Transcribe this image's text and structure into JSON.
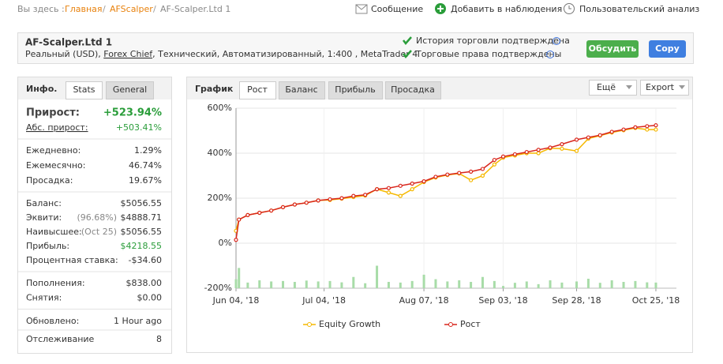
{
  "breadcrumb": {
    "label": "Вы здесь :",
    "items": [
      "Главная",
      "AFScalper",
      "AF-Scalper.Ltd 1"
    ]
  },
  "actions": [
    "Сообщение",
    "Добавить в наблюдения",
    "Пользовательский анализ"
  ],
  "account": {
    "name": "AF-Scalper.Ltd 1",
    "type": "Реальный (USD),",
    "broker": "Forex Chief",
    "details": ", Технический, Автоматизированный, 1:400 , MetaTrader 4",
    "checks": [
      "История торговли подтверждена",
      "Торговые права подтверждены"
    ],
    "buttons": [
      "Обсудить",
      "Copy"
    ]
  },
  "info": {
    "tabs": [
      "Инфо.",
      "Stats",
      "General"
    ],
    "headline": {
      "label": "Прирост:",
      "value": "+523.94%"
    },
    "groups": [
      [
        {
          "label": "Абс. прирост:",
          "value": "+503.41%",
          "color": "#2a9d3a"
        }
      ],
      [
        {
          "label": "Ежедневно:",
          "value": "1.29%"
        },
        {
          "label": "Ежемесячно:",
          "value": "46.74%"
        },
        {
          "label": "Просадка:",
          "value": "19.67%"
        }
      ],
      [
        {
          "label": "Баланс:",
          "value": "$5056.55"
        },
        {
          "label": "Эквити:",
          "note": "(96.68%)",
          "value": "$4888.71"
        },
        {
          "label": "Наивысшее:",
          "note": "(Oct 25)",
          "value": "$5056.55"
        },
        {
          "label": "Прибыль:",
          "value": "$4218.55",
          "color": "#2a9d3a"
        },
        {
          "label": "Процентная ставка:",
          "value": "-$34.60"
        }
      ],
      [
        {
          "label": "Пополнения:",
          "value": "$838.00"
        },
        {
          "label": "Снятия:",
          "value": "$0.00"
        }
      ],
      [
        {
          "label": "Обновлено:",
          "value": "1 Hour ago"
        },
        {
          "label": "Отслеживание",
          "value": "8"
        }
      ]
    ]
  },
  "chart_panel": {
    "title": "График",
    "tabs": [
      "Рост",
      "Баланс",
      "Прибыль",
      "Просадка"
    ],
    "buttons": [
      "Ещё",
      "Export"
    ]
  },
  "chart_data": {
    "type": "line",
    "x": [
      "2018-06-04",
      "2018-06-05",
      "2018-06-08",
      "2018-06-12",
      "2018-06-16",
      "2018-06-20",
      "2018-06-24",
      "2018-06-28",
      "2018-07-02",
      "2018-07-06",
      "2018-07-10",
      "2018-07-14",
      "2018-07-18",
      "2018-07-22",
      "2018-07-26",
      "2018-07-30",
      "2018-08-03",
      "2018-08-07",
      "2018-08-11",
      "2018-08-15",
      "2018-08-19",
      "2018-08-23",
      "2018-08-27",
      "2018-08-31",
      "2018-09-03",
      "2018-09-07",
      "2018-09-11",
      "2018-09-15",
      "2018-09-19",
      "2018-09-23",
      "2018-09-28",
      "2018-10-02",
      "2018-10-06",
      "2018-10-10",
      "2018-10-14",
      "2018-10-18",
      "2018-10-22",
      "2018-10-25"
    ],
    "series": [
      {
        "name": "Equity Growth",
        "color": "#f5b800",
        "values": [
          55,
          105,
          125,
          135,
          145,
          160,
          172,
          180,
          190,
          192,
          198,
          205,
          212,
          240,
          225,
          210,
          240,
          272,
          292,
          303,
          310,
          280,
          300,
          350,
          380,
          390,
          400,
          400,
          422,
          420,
          410,
          465,
          478,
          492,
          502,
          512,
          505,
          505
        ]
      },
      {
        "name": "Рост",
        "color": "#d9261c",
        "values": [
          15,
          105,
          125,
          135,
          145,
          160,
          172,
          180,
          190,
          195,
          200,
          210,
          215,
          240,
          245,
          255,
          265,
          275,
          295,
          305,
          312,
          318,
          330,
          370,
          385,
          395,
          405,
          415,
          425,
          440,
          460,
          470,
          480,
          495,
          505,
          515,
          520,
          524
        ]
      }
    ],
    "bar_values": [
      -160,
      -110,
      -175,
      -165,
      -170,
      -168,
      -172,
      -166,
      -170,
      -168,
      -174,
      -150,
      -178,
      -100,
      -172,
      -175,
      -168,
      -140,
      -160,
      -170,
      -165,
      -172,
      -150,
      -168,
      -190,
      -176,
      -170,
      -182,
      -165,
      -175,
      -170,
      -158,
      -176,
      -165,
      -172,
      -168,
      -174,
      -175
    ],
    "bar_color": "#a8dca8",
    "xlim": [
      "2018-06-04",
      "2018-11-01"
    ],
    "xticks": [
      {
        "value": "2018-06-04",
        "label": "Jun 04, '18"
      },
      {
        "value": "2018-07-04",
        "label": "Jul 04, '18"
      },
      {
        "value": "2018-08-07",
        "label": "Aug 07, '18"
      },
      {
        "value": "2018-09-03",
        "label": "Sep 03, '18"
      },
      {
        "value": "2018-09-28",
        "label": "Sep 28, '18"
      },
      {
        "value": "2018-10-25",
        "label": "Oct 25, '18"
      }
    ],
    "ylim": [
      -200,
      600
    ],
    "yticks": [
      {
        "value": -200,
        "label": "-200%"
      },
      {
        "value": 0,
        "label": "0%"
      },
      {
        "value": 200,
        "label": "200%"
      },
      {
        "value": 400,
        "label": "400%"
      },
      {
        "value": 600,
        "label": "600%"
      }
    ],
    "grid": true,
    "legend": "bottom"
  }
}
